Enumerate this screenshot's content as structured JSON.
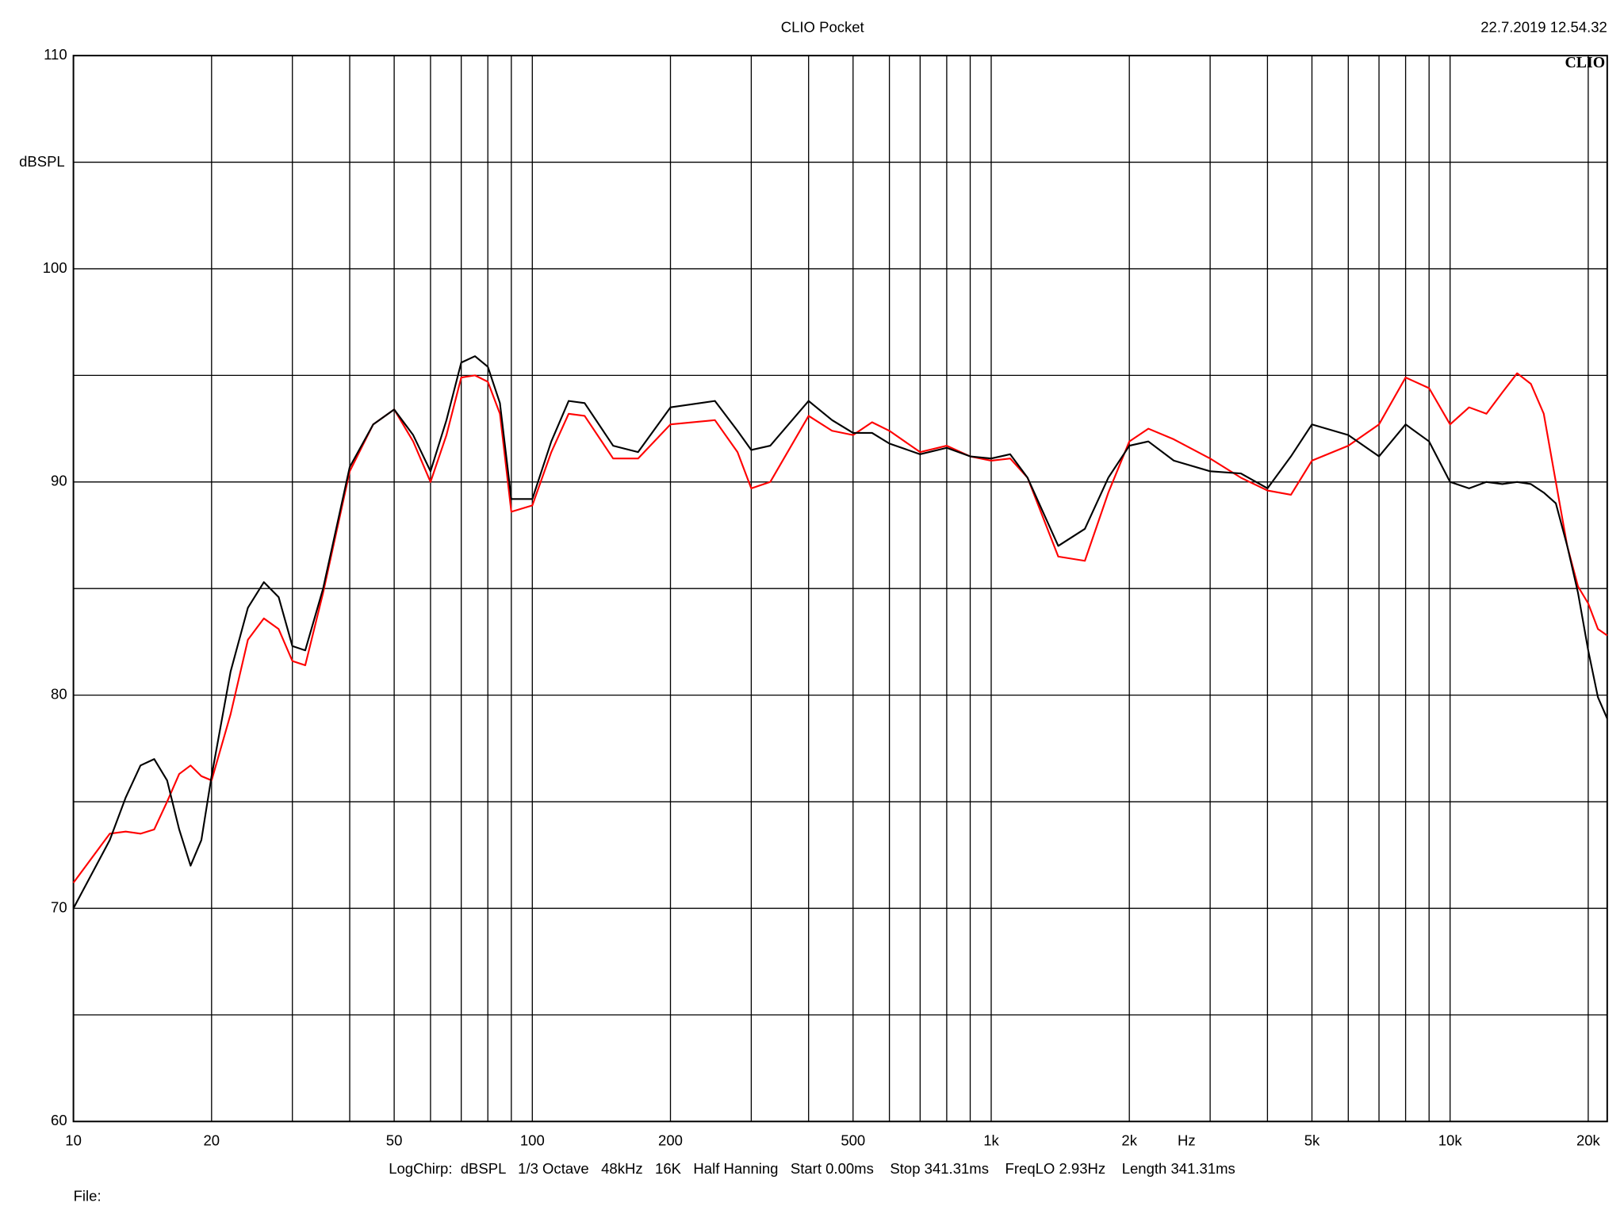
{
  "chart_data": {
    "type": "line",
    "title": "CLIO Pocket",
    "timestamp": "22.7.2019 12.54.32",
    "logo": "CLIO",
    "y_label": "dBSPL",
    "x_label": "Hz",
    "footer": "LogChirp:  dBSPL   1/3 Octave   48kHz   16K   Half Hanning   Start 0.00ms    Stop 341.31ms    FreqLO 2.93Hz    Length 341.31ms",
    "file_label": "File:",
    "log_x": true,
    "grid": true,
    "xlim": [
      10,
      22000
    ],
    "ylim": [
      60,
      110
    ],
    "xticks": [
      10,
      20,
      50,
      100,
      200,
      500,
      {
        "value": 1000,
        "label": "1k"
      },
      {
        "value": 2000,
        "label": "2k"
      },
      {
        "value": 5000,
        "label": "5k"
      },
      {
        "value": 10000,
        "label": "10k"
      },
      {
        "value": 20000,
        "label": "20k"
      }
    ],
    "x_minor_ticks": [
      30,
      40,
      60,
      70,
      80,
      90,
      300,
      400,
      600,
      700,
      800,
      900,
      3000,
      4000,
      6000,
      7000,
      8000,
      9000
    ],
    "yticks": [
      60,
      70,
      80,
      90,
      100,
      110
    ],
    "y_minor_ticks": [
      65,
      75,
      85,
      95,
      105
    ],
    "x": [
      10,
      12,
      13,
      14,
      15,
      16,
      17,
      18,
      19,
      20,
      22,
      24,
      26,
      28,
      30,
      32,
      35,
      40,
      45,
      50,
      55,
      60,
      65,
      70,
      75,
      80,
      85,
      90,
      100,
      110,
      120,
      130,
      150,
      170,
      200,
      250,
      280,
      300,
      330,
      400,
      450,
      500,
      550,
      600,
      700,
      800,
      900,
      1000,
      1100,
      1200,
      1400,
      1600,
      1800,
      2000,
      2200,
      2500,
      3000,
      3500,
      4000,
      4500,
      5000,
      6000,
      7000,
      8000,
      9000,
      10000,
      11000,
      12000,
      13000,
      14000,
      15000,
      16000,
      17000,
      18000,
      19000,
      20000,
      21000,
      22000
    ],
    "series": [
      {
        "color": "#000000",
        "values": [
          70.0,
          73.2,
          75.2,
          76.7,
          77.0,
          76.0,
          73.7,
          72.0,
          73.2,
          76.2,
          81.1,
          84.1,
          85.3,
          84.6,
          82.3,
          82.1,
          85.0,
          90.7,
          92.7,
          93.4,
          92.2,
          90.5,
          92.9,
          95.6,
          95.9,
          95.4,
          93.7,
          89.2,
          89.2,
          91.9,
          93.8,
          93.7,
          91.7,
          91.4,
          93.5,
          93.8,
          92.4,
          91.5,
          91.7,
          93.8,
          92.9,
          92.3,
          92.3,
          91.8,
          91.3,
          91.6,
          91.2,
          91.1,
          91.3,
          90.2,
          87.0,
          87.8,
          90.2,
          91.7,
          91.9,
          91.0,
          90.5,
          90.4,
          89.7,
          91.2,
          92.7,
          92.2,
          91.2,
          92.7,
          91.9,
          90.0,
          89.7,
          90.0,
          89.9,
          90.0,
          89.9,
          89.5,
          89.0,
          87.0,
          84.8,
          82.1,
          79.9,
          78.9
        ]
      },
      {
        "color": "#ff0000",
        "values": [
          71.2,
          73.5,
          73.6,
          73.5,
          73.7,
          75.0,
          76.3,
          76.7,
          76.2,
          76.0,
          79.1,
          82.6,
          83.6,
          83.1,
          81.6,
          81.4,
          84.8,
          90.5,
          92.7,
          93.4,
          91.9,
          90.0,
          92.2,
          94.9,
          95.0,
          94.7,
          93.2,
          88.6,
          88.9,
          91.4,
          93.2,
          93.1,
          91.1,
          91.1,
          92.7,
          92.9,
          91.4,
          89.7,
          90.0,
          93.1,
          92.4,
          92.2,
          92.8,
          92.4,
          91.4,
          91.7,
          91.2,
          91.0,
          91.1,
          90.2,
          86.5,
          86.3,
          89.5,
          91.9,
          92.5,
          92.0,
          91.1,
          90.2,
          89.6,
          89.4,
          91.0,
          91.7,
          92.7,
          94.9,
          94.4,
          92.7,
          93.5,
          93.2,
          94.2,
          95.1,
          94.6,
          93.2,
          90.0,
          87.0,
          85.1,
          84.3,
          83.1,
          82.8
        ]
      }
    ]
  }
}
